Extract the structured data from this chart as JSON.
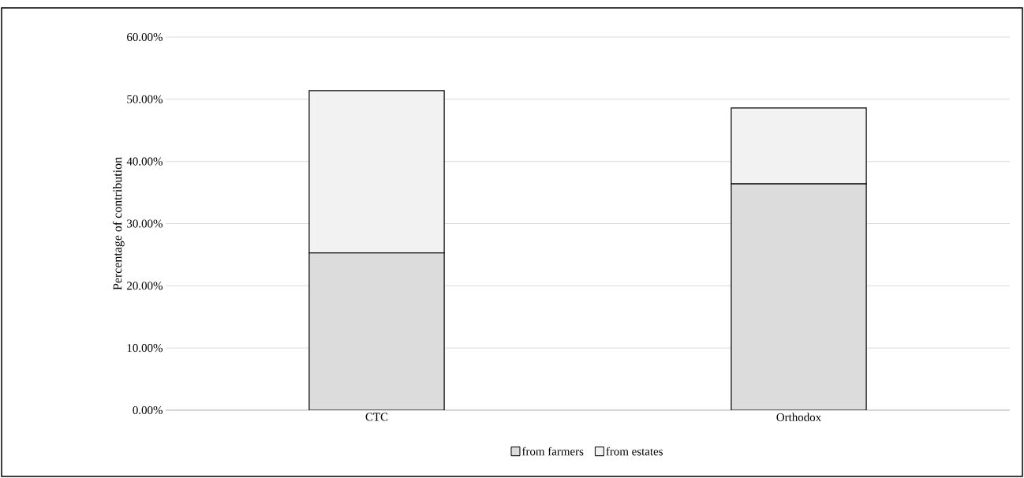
{
  "chart_data": {
    "type": "bar",
    "stacked": true,
    "ylabel": "Percentage of contribution",
    "categories": [
      "CTC",
      "Orthodox"
    ],
    "series": [
      {
        "name": "from farmers",
        "color": "#dcdcdc",
        "values": [
          25.3,
          36.4
        ]
      },
      {
        "name": "from estates",
        "color": "#f2f2f2",
        "values": [
          26.1,
          12.2
        ]
      }
    ],
    "ylim": [
      0,
      60
    ],
    "yticks": [
      {
        "value": 0,
        "label": "0.00%"
      },
      {
        "value": 10,
        "label": "10.00%"
      },
      {
        "value": 20,
        "label": "20.00%"
      },
      {
        "value": 30,
        "label": "30.00%"
      },
      {
        "value": 40,
        "label": "40.00%"
      },
      {
        "value": 50,
        "label": "50.00%"
      },
      {
        "value": 60,
        "label": "60.00%"
      }
    ],
    "grid": "y",
    "legend": "bottom"
  }
}
